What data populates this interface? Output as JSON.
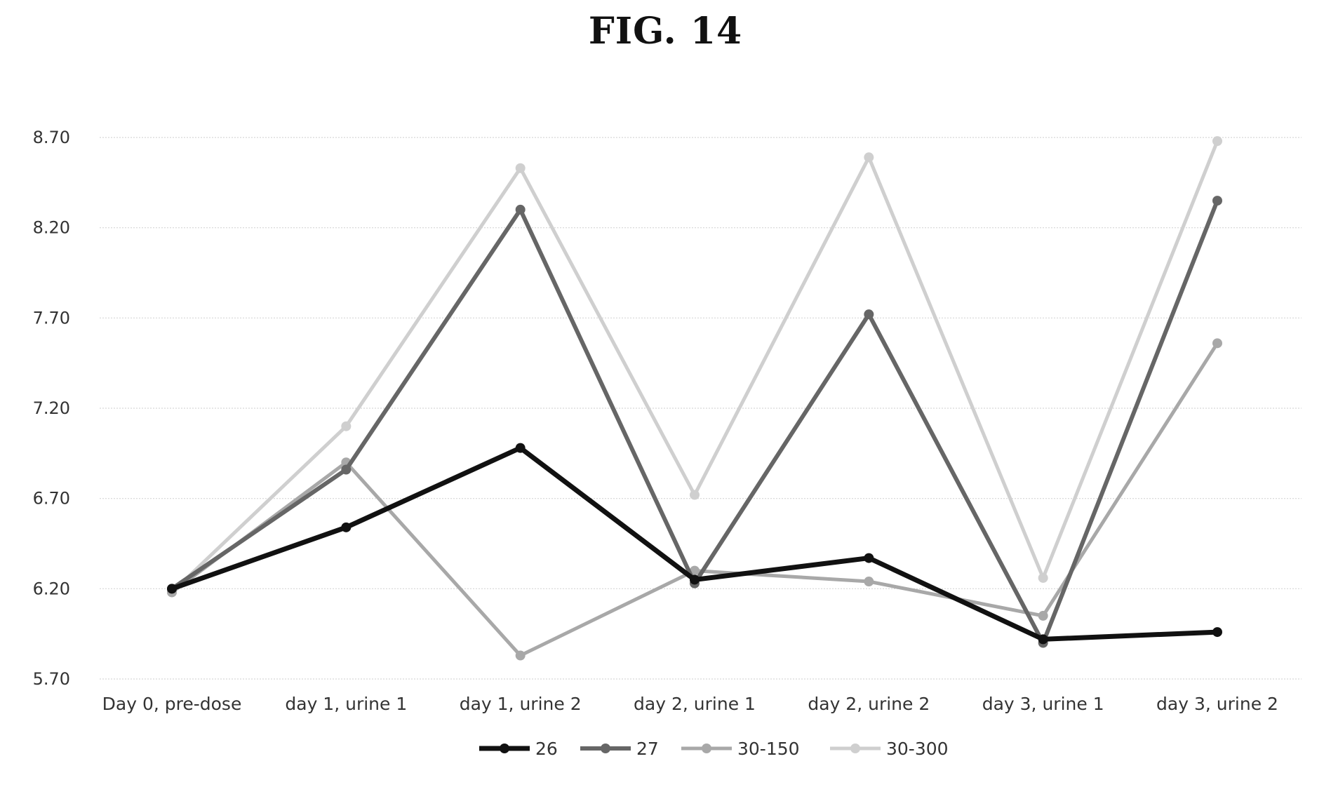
{
  "figure": {
    "title": "FIG. 14"
  },
  "chart_data": {
    "type": "line",
    "title": "",
    "xlabel": "",
    "ylabel": "",
    "ylim": [
      5.7,
      8.7
    ],
    "yticks": [
      "5.70",
      "6.20",
      "6.70",
      "7.20",
      "7.70",
      "8.20",
      "8.70"
    ],
    "grid": true,
    "legend_position": "bottom",
    "categories": [
      "Day 0, pre-dose",
      "day 1, urine 1",
      "day 1, urine 2",
      "day 2, urine 1",
      "day 2, urine 2",
      "day 3, urine 1",
      "day 3, urine 2"
    ],
    "series": [
      {
        "name": "26",
        "color": "#111111",
        "marker": "circle",
        "values": [
          6.2,
          6.54,
          6.98,
          6.25,
          6.37,
          5.92,
          5.96
        ]
      },
      {
        "name": "27",
        "color": "#666666",
        "marker": "circle",
        "values": [
          6.2,
          6.86,
          8.3,
          6.23,
          7.72,
          5.9,
          8.35
        ]
      },
      {
        "name": "30-150",
        "color": "#a8a8a8",
        "marker": "circle",
        "values": [
          6.18,
          6.9,
          5.83,
          6.3,
          6.24,
          6.05,
          7.56
        ]
      },
      {
        "name": "30-300",
        "color": "#cfcfcf",
        "marker": "circle",
        "values": [
          6.18,
          7.1,
          8.53,
          6.72,
          8.59,
          6.26,
          8.68
        ]
      }
    ]
  }
}
